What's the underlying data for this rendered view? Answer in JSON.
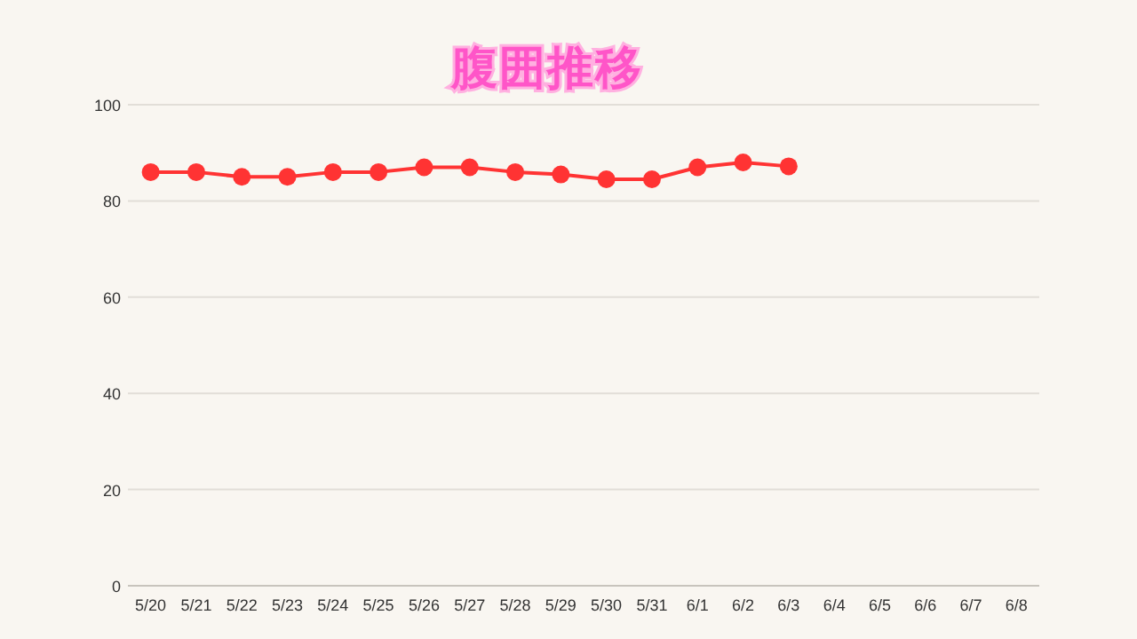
{
  "chart_data": {
    "type": "line",
    "title": "腹囲推移",
    "categories": [
      "5/20",
      "5/21",
      "5/22",
      "5/23",
      "5/24",
      "5/25",
      "5/26",
      "5/27",
      "5/28",
      "5/29",
      "5/30",
      "5/31",
      "6/1",
      "6/2",
      "6/3",
      "6/4",
      "6/5",
      "6/6",
      "6/7",
      "6/8"
    ],
    "series": [
      {
        "color": "#ff3333",
        "values": [
          86,
          86,
          85,
          85,
          86,
          86,
          87,
          87,
          86,
          85.5,
          84.5,
          84.5,
          87,
          88,
          87.2,
          null,
          null,
          null,
          null,
          null
        ]
      }
    ],
    "ylim": [
      0,
      100
    ],
    "yticks": [
      0,
      20,
      40,
      60,
      80,
      100
    ],
    "grid": "y",
    "marker": "circle",
    "line_style": "solid"
  }
}
